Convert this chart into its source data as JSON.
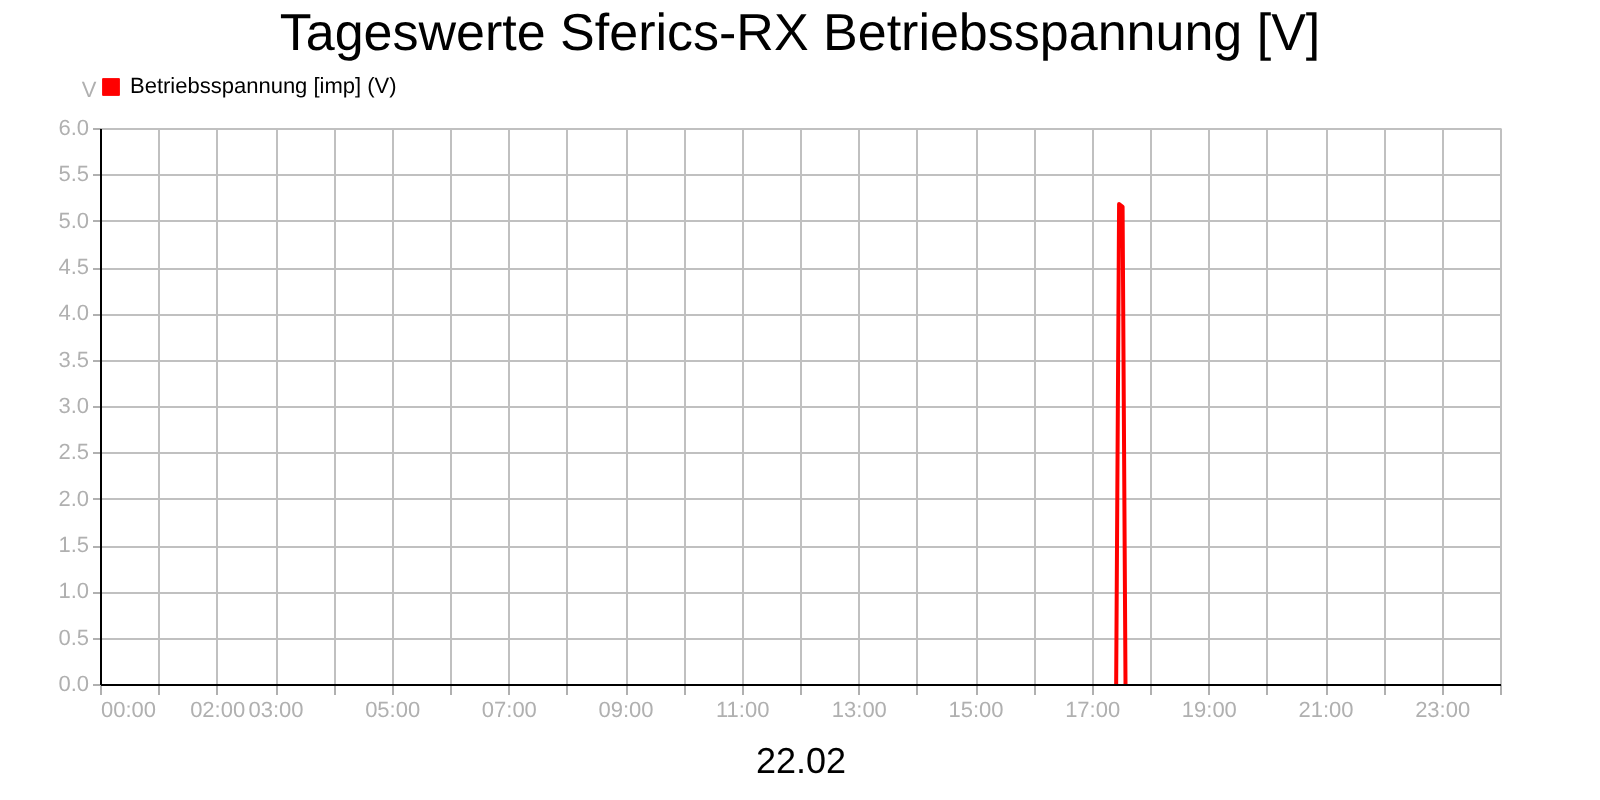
{
  "chart_data": {
    "type": "line",
    "title": "Tageswerte Sferics-RX Betriebsspannung [V]",
    "xlabel": "22.02",
    "ylabel": "V",
    "x": [
      17.42,
      17.47,
      17.53,
      17.58
    ],
    "series": [
      {
        "name": "Betriebsspannung [imp] (V)",
        "color": "#ff0000",
        "values": [
          0,
          5.18,
          5.15,
          0
        ]
      }
    ],
    "xlim": [
      0,
      24
    ],
    "xticks": [
      {
        "value": 0,
        "label": "00:00"
      },
      {
        "value": 1,
        "label": null
      },
      {
        "value": 2,
        "label": "02:00"
      },
      {
        "value": 3,
        "label": "03:00"
      },
      {
        "value": 4,
        "label": null
      },
      {
        "value": 5,
        "label": "05:00"
      },
      {
        "value": 6,
        "label": null
      },
      {
        "value": 7,
        "label": "07:00"
      },
      {
        "value": 8,
        "label": null
      },
      {
        "value": 9,
        "label": "09:00"
      },
      {
        "value": 10,
        "label": null
      },
      {
        "value": 11,
        "label": "11:00"
      },
      {
        "value": 12,
        "label": null
      },
      {
        "value": 13,
        "label": "13:00"
      },
      {
        "value": 14,
        "label": null
      },
      {
        "value": 15,
        "label": "15:00"
      },
      {
        "value": 16,
        "label": null
      },
      {
        "value": 17,
        "label": "17:00"
      },
      {
        "value": 18,
        "label": null
      },
      {
        "value": 19,
        "label": "19:00"
      },
      {
        "value": 20,
        "label": null
      },
      {
        "value": 21,
        "label": "21:00"
      },
      {
        "value": 22,
        "label": null
      },
      {
        "value": 23,
        "label": "23:00"
      },
      {
        "value": 24,
        "label": null
      }
    ],
    "ylim": [
      0,
      6
    ],
    "yticks": [
      {
        "value": 0,
        "label": "0.0"
      },
      {
        "value": 0.5,
        "label": "0.5"
      },
      {
        "value": 1,
        "label": "1.0"
      },
      {
        "value": 1.5,
        "label": "1.5"
      },
      {
        "value": 2,
        "label": "2.0"
      },
      {
        "value": 2.5,
        "label": "2.5"
      },
      {
        "value": 3,
        "label": "3.0"
      },
      {
        "value": 3.5,
        "label": "3.5"
      },
      {
        "value": 4,
        "label": "4.0"
      },
      {
        "value": 4.5,
        "label": "4.5"
      },
      {
        "value": 5,
        "label": "5.0"
      },
      {
        "value": 5.5,
        "label": "5.5"
      },
      {
        "value": 6,
        "label": "6.0"
      }
    ],
    "grid": true,
    "legend": "top left",
    "marker": "none",
    "line_style": "solid"
  }
}
